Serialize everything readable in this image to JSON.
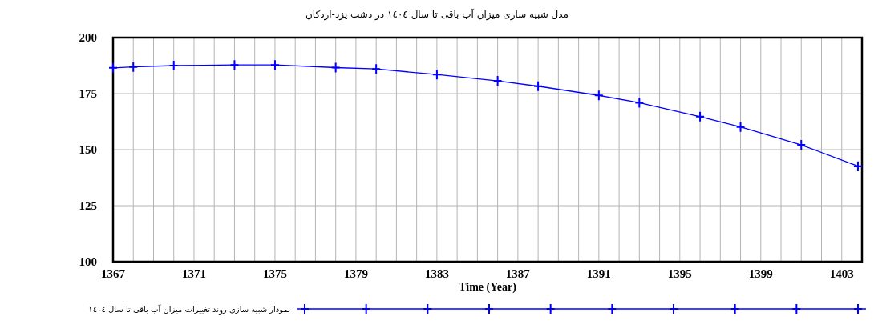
{
  "chart_data": {
    "type": "line",
    "title": "مدل شبیه سازی میزان آب باقی تا سال ١٤٠٤ در دشت یزد-اردکان",
    "xlabel": "Time (Year)",
    "x": [
      1367,
      1368,
      1370,
      1373,
      1375,
      1378,
      1380,
      1383,
      1386,
      1388,
      1391,
      1393,
      1396,
      1398,
      1401,
      1403.8
    ],
    "series": [
      {
        "name": "نمودار شبیه سازی روند تغییرات میزان آب باقی تا سال ١٤٠٤",
        "color": "#0000ff",
        "values": [
          186.5,
          186.9,
          187.5,
          187.8,
          187.8,
          186.6,
          186,
          183.5,
          180.7,
          178.3,
          174.2,
          170.9,
          164.7,
          160.1,
          152.1,
          142.6
        ]
      }
    ],
    "xlim": [
      1367,
      1404
    ],
    "ylim": [
      100,
      200
    ],
    "yticks": [
      100,
      125,
      150,
      175,
      200
    ],
    "xticks": [
      1367,
      {
        "value": 1368,
        "label": null
      },
      {
        "value": 1369,
        "label": null
      },
      {
        "value": 1370,
        "label": null
      },
      1371,
      {
        "value": 1372,
        "label": null
      },
      {
        "value": 1373,
        "label": null
      },
      {
        "value": 1374,
        "label": null
      },
      1375,
      {
        "value": 1376,
        "label": null
      },
      {
        "value": 1377,
        "label": null
      },
      {
        "value": 1378,
        "label": null
      },
      1379,
      {
        "value": 1380,
        "label": null
      },
      {
        "value": 1381,
        "label": null
      },
      {
        "value": 1382,
        "label": null
      },
      1383,
      {
        "value": 1384,
        "label": null
      },
      {
        "value": 1385,
        "label": null
      },
      {
        "value": 1386,
        "label": null
      },
      1387,
      {
        "value": 1388,
        "label": null
      },
      {
        "value": 1389,
        "label": null
      },
      {
        "value": 1390,
        "label": null
      },
      1391,
      {
        "value": 1392,
        "label": null
      },
      {
        "value": 1393,
        "label": null
      },
      {
        "value": 1394,
        "label": null
      },
      1395,
      {
        "value": 1396,
        "label": null
      },
      {
        "value": 1397,
        "label": null
      },
      {
        "value": 1398,
        "label": null
      },
      1399,
      {
        "value": 1400,
        "label": null
      },
      {
        "value": 1401,
        "label": null
      },
      {
        "value": 1402,
        "label": null
      },
      1403
    ],
    "grid": true,
    "legend": "bottom",
    "marker": "cross",
    "line_style": "solid"
  }
}
